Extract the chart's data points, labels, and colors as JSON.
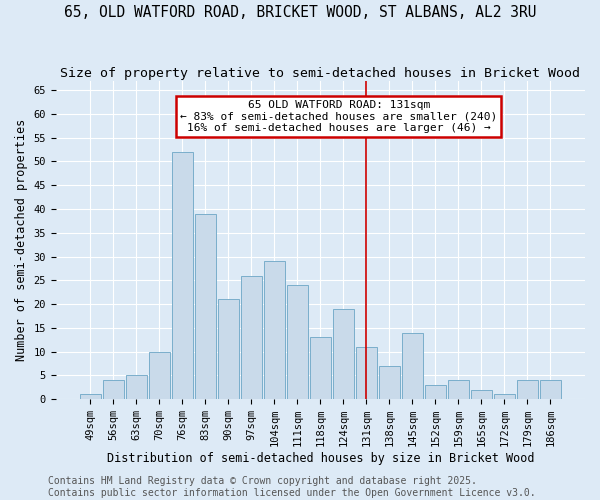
{
  "title1": "65, OLD WATFORD ROAD, BRICKET WOOD, ST ALBANS, AL2 3RU",
  "title2": "Size of property relative to semi-detached houses in Bricket Wood",
  "xlabel": "Distribution of semi-detached houses by size in Bricket Wood",
  "ylabel": "Number of semi-detached properties",
  "footer1": "Contains HM Land Registry data © Crown copyright and database right 2025.",
  "footer2": "Contains public sector information licensed under the Open Government Licence v3.0.",
  "categories": [
    "49sqm",
    "56sqm",
    "63sqm",
    "70sqm",
    "76sqm",
    "83sqm",
    "90sqm",
    "97sqm",
    "104sqm",
    "111sqm",
    "118sqm",
    "124sqm",
    "131sqm",
    "138sqm",
    "145sqm",
    "152sqm",
    "159sqm",
    "165sqm",
    "172sqm",
    "179sqm",
    "186sqm"
  ],
  "values": [
    1,
    4,
    5,
    10,
    52,
    39,
    21,
    26,
    29,
    24,
    13,
    19,
    11,
    7,
    14,
    3,
    4,
    2,
    1,
    4,
    4
  ],
  "bar_color": "#c9daea",
  "bar_edge_color": "#7aaecb",
  "highlight_index": 12,
  "highlight_line_color": "#cc0000",
  "annotation_title": "65 OLD WATFORD ROAD: 131sqm",
  "annotation_line1": "← 83% of semi-detached houses are smaller (240)",
  "annotation_line2": "16% of semi-detached houses are larger (46) →",
  "annotation_box_color": "#cc0000",
  "ylim": [
    0,
    67
  ],
  "yticks": [
    0,
    5,
    10,
    15,
    20,
    25,
    30,
    35,
    40,
    45,
    50,
    55,
    60,
    65
  ],
  "background_color": "#ddeaf6",
  "plot_background_color": "#ddeaf6",
  "grid_color": "#ffffff",
  "title_fontsize": 10.5,
  "subtitle_fontsize": 9.5,
  "axis_label_fontsize": 8.5,
  "tick_fontsize": 7.5,
  "footer_fontsize": 7,
  "annotation_fontsize": 8
}
